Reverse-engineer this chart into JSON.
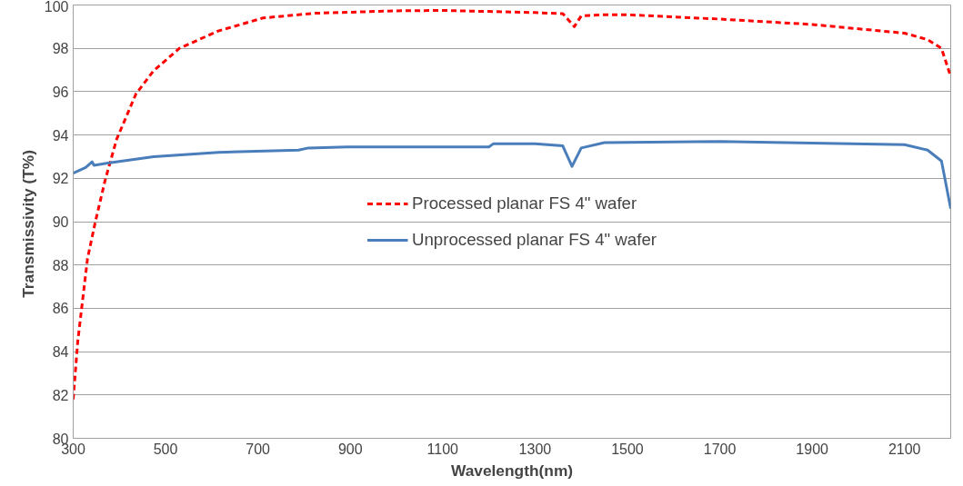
{
  "chart_data": {
    "type": "line",
    "xlabel": "Wavelength(nm)",
    "ylabel": "Transmissivity  (T%)",
    "xlim": [
      300,
      2200
    ],
    "xticks": [
      300,
      500,
      700,
      900,
      1100,
      1300,
      1500,
      1700,
      1900,
      2100
    ],
    "ylim": [
      80,
      100
    ],
    "yticks": [
      80,
      82,
      84,
      86,
      88,
      90,
      92,
      94,
      96,
      98,
      100
    ],
    "grid": "y",
    "legend": "center",
    "series": [
      {
        "name": "Processed planar FS 4\" wafer",
        "color": "#ff0000",
        "line_style": "dashed",
        "x": [
          300,
          310,
          331,
          348,
          369,
          394,
          436,
          474,
          530,
          614,
          711,
          823,
          998,
          1100,
          1300,
          1360,
          1385,
          1400,
          1450,
          1500,
          1700,
          1900,
          2100,
          2150,
          2180,
          2200
        ],
        "values": [
          81.8,
          84.5,
          88.3,
          90.0,
          91.9,
          93.8,
          95.9,
          96.96,
          98.0,
          98.8,
          99.4,
          99.62,
          99.73,
          99.75,
          99.65,
          99.6,
          99.0,
          99.5,
          99.55,
          99.55,
          99.35,
          99.1,
          98.7,
          98.4,
          98.0,
          96.7
        ]
      },
      {
        "name": "Unprocessed planar FS 4\" wafer",
        "color": "#4a7ebb",
        "line_style": "solid",
        "x": [
          300,
          327,
          341,
          345,
          375,
          474,
          614,
          788,
          809,
          893,
          1200,
          1210,
          1300,
          1360,
          1380,
          1400,
          1450,
          1700,
          2100,
          2150,
          2180,
          2200
        ],
        "values": [
          92.24,
          92.5,
          92.76,
          92.6,
          92.7,
          93.0,
          93.2,
          93.3,
          93.4,
          93.45,
          93.45,
          93.6,
          93.6,
          93.5,
          92.55,
          93.4,
          93.65,
          93.7,
          93.55,
          93.3,
          92.8,
          90.6
        ]
      }
    ]
  }
}
